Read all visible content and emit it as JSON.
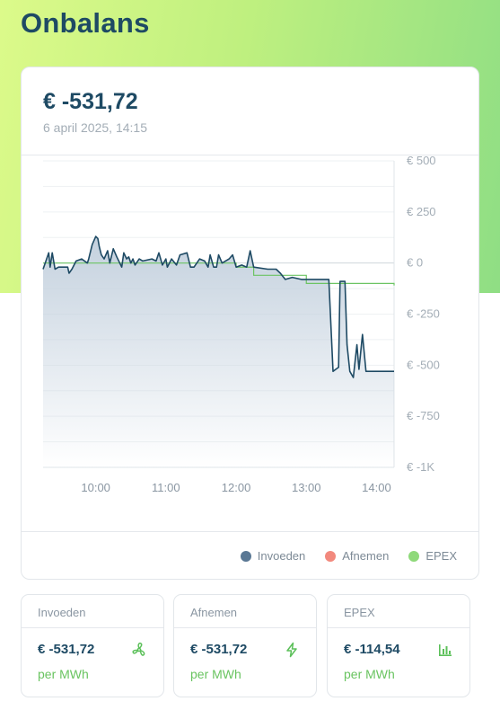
{
  "page": {
    "title": "Onbalans"
  },
  "summary": {
    "price": "€ -531,72",
    "timestamp": "6 april 2025, 14:15"
  },
  "legend": [
    {
      "label": "Invoeden",
      "color": "#5a7894"
    },
    {
      "label": "Afnemen",
      "color": "#f2897d"
    },
    {
      "label": "EPEX",
      "color": "#8fd97a"
    }
  ],
  "cards": [
    {
      "title": "Invoeden",
      "value": "€ -531,72",
      "unit": "per MWh",
      "icon": "fan-icon"
    },
    {
      "title": "Afnemen",
      "value": "€ -531,72",
      "unit": "per MWh",
      "icon": "lightning-icon"
    },
    {
      "title": "EPEX",
      "value": "€ -114,54",
      "unit": "per MWh",
      "icon": "bar-chart-icon"
    }
  ],
  "chart_data": {
    "type": "area",
    "y_ticks": [
      "€ 500",
      "€ 250",
      "€ 0",
      "€ -250",
      "€ -500",
      "€ -750",
      "€ -1K"
    ],
    "x_ticks": [
      "10:00",
      "11:00",
      "12:00",
      "13:00",
      "14:00"
    ],
    "x_tick_hours": [
      10,
      11,
      12,
      13,
      14
    ],
    "xlim": [
      9.25,
      14.25
    ],
    "ylim": [
      -1000,
      500
    ],
    "grid": true,
    "legend_position": "bottom-right",
    "colors": {
      "invoeden_line": "#1e4a64",
      "invoeden_fill": "#c9d5e1",
      "epex_line": "#6cc463"
    },
    "series": [
      {
        "name": "Invoeden",
        "x": [
          9.25,
          9.33,
          9.35,
          9.38,
          9.42,
          9.47,
          9.6,
          9.62,
          9.66,
          9.72,
          9.8,
          9.88,
          9.9,
          9.95,
          10.0,
          10.03,
          10.05,
          10.08,
          10.12,
          10.17,
          10.2,
          10.25,
          10.3,
          10.37,
          10.4,
          10.44,
          10.47,
          10.5,
          10.53,
          10.56,
          10.62,
          10.67,
          10.8,
          10.86,
          10.9,
          10.95,
          11.0,
          11.02,
          11.08,
          11.15,
          11.2,
          11.3,
          11.35,
          11.4,
          11.48,
          11.55,
          11.6,
          11.63,
          11.68,
          11.72,
          11.75,
          11.8,
          11.9,
          11.95,
          12.0,
          12.08,
          12.15,
          12.2,
          12.25,
          12.45,
          12.57,
          12.63,
          12.7,
          12.8,
          12.93,
          13.05,
          13.15,
          13.25,
          13.32,
          13.38,
          13.42,
          13.46,
          13.48,
          13.55,
          13.58,
          13.62,
          13.67,
          13.72,
          13.75,
          13.8,
          13.85,
          13.88,
          13.92,
          13.96,
          14.0,
          14.25
        ],
        "y": [
          -30,
          50,
          -20,
          50,
          -30,
          -20,
          -20,
          -50,
          -30,
          10,
          20,
          0,
          20,
          90,
          130,
          120,
          80,
          40,
          20,
          60,
          0,
          70,
          30,
          -20,
          50,
          20,
          30,
          0,
          20,
          -10,
          20,
          10,
          20,
          10,
          50,
          -10,
          20,
          -20,
          20,
          -10,
          40,
          50,
          -20,
          -20,
          20,
          10,
          -20,
          40,
          -20,
          -20,
          40,
          0,
          20,
          40,
          -20,
          -10,
          -20,
          60,
          -20,
          -30,
          -30,
          -50,
          -80,
          -70,
          -80,
          -80,
          -80,
          -80,
          -80,
          -530,
          -520,
          -510,
          -90,
          -90,
          -400,
          -530,
          -560,
          -400,
          -520,
          -350,
          -530,
          -530,
          -530,
          -530,
          -530,
          -530
        ]
      },
      {
        "name": "EPEX",
        "x": [
          9.25,
          10.25,
          10.5,
          11.25,
          12.0,
          12.25,
          13.0,
          14.25
        ],
        "y": [
          0,
          0,
          0,
          0,
          -20,
          -60,
          -100,
          -110
        ]
      }
    ]
  }
}
